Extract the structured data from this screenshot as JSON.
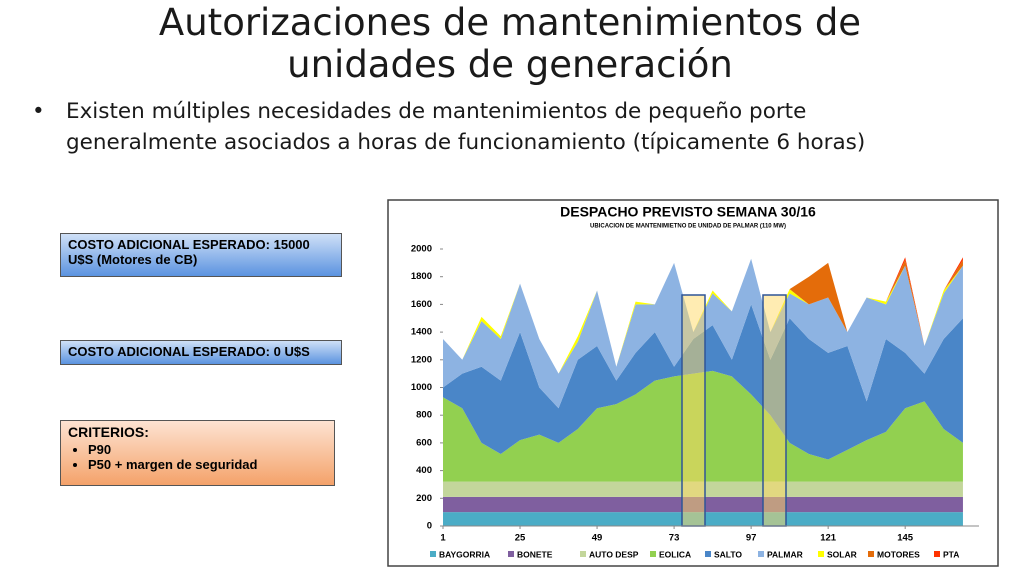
{
  "slide": {
    "title": "Autorizaciones de mantenimientos de unidades de generación",
    "bullet": "Existen múltiples necesidades de mantenimientos de pequeño porte generalmente asociados a horas de funcionamiento (típicamente 6 horas)",
    "box1": "COSTO ADICIONAL ESPERADO: 15000 U$S (Motores de CB)",
    "box2": "COSTO ADICIONAL ESPERADO: 0 U$S",
    "criteria": {
      "title": "CRITERIOS:",
      "items": [
        "P90",
        "P50 + margen de seguridad"
      ]
    }
  },
  "chart_data": {
    "type": "stacked_area",
    "title": "DESPACHO PREVISTO SEMANA 30/16",
    "subtitle": "UBICACION DE MANTENIMIETNO DE UNIDAD DE PALMAR (110 MW)",
    "x": [
      1,
      7,
      13,
      19,
      25,
      31,
      37,
      43,
      49,
      55,
      61,
      67,
      73,
      79,
      85,
      91,
      97,
      103,
      109,
      115,
      121,
      127,
      133,
      139,
      145,
      151,
      157,
      163
    ],
    "xlim": [
      1,
      168
    ],
    "xticks": [
      1,
      25,
      49,
      73,
      97,
      121,
      145
    ],
    "ylim": [
      0,
      2000
    ],
    "yticks": [
      0,
      200,
      400,
      600,
      800,
      1000,
      1200,
      1400,
      1600,
      1800,
      2000
    ],
    "grid": false,
    "legend": "bottom",
    "series": [
      {
        "name": "BAYGORRIA",
        "color": "#4bacc6",
        "values": [
          100,
          100,
          100,
          100,
          100,
          100,
          100,
          100,
          100,
          100,
          100,
          100,
          100,
          100,
          100,
          100,
          100,
          100,
          100,
          100,
          100,
          100,
          100,
          100,
          100,
          100,
          100,
          100
        ]
      },
      {
        "name": "BONETE",
        "color": "#7f5f9f",
        "values": [
          110,
          110,
          110,
          110,
          110,
          110,
          110,
          110,
          110,
          110,
          110,
          110,
          110,
          110,
          110,
          110,
          110,
          110,
          110,
          110,
          110,
          110,
          110,
          110,
          110,
          110,
          110,
          110
        ]
      },
      {
        "name": "AUTO DESP",
        "color": "#c3d69b",
        "values": [
          110,
          110,
          110,
          110,
          110,
          110,
          110,
          110,
          110,
          110,
          110,
          110,
          110,
          110,
          110,
          110,
          110,
          110,
          110,
          110,
          110,
          110,
          110,
          110,
          110,
          110,
          110,
          110
        ]
      },
      {
        "name": "EOLICA",
        "color": "#92d050",
        "values": [
          610,
          530,
          280,
          200,
          300,
          340,
          280,
          380,
          530,
          560,
          630,
          730,
          760,
          780,
          800,
          760,
          630,
          480,
          280,
          200,
          160,
          230,
          300,
          360,
          530,
          580,
          380,
          280
        ]
      },
      {
        "name": "SALTO",
        "color": "#4a86c8",
        "values": [
          70,
          250,
          550,
          530,
          780,
          340,
          250,
          500,
          450,
          170,
          300,
          350,
          70,
          250,
          330,
          120,
          650,
          400,
          900,
          830,
          770,
          750,
          280,
          670,
          400,
          200,
          650,
          900
        ]
      },
      {
        "name": "PALMAR",
        "color": "#8db3e2",
        "values": [
          350,
          100,
          330,
          300,
          350,
          350,
          250,
          130,
          400,
          100,
          350,
          200,
          750,
          50,
          230,
          350,
          330,
          200,
          180,
          250,
          400,
          100,
          750,
          250,
          630,
          200,
          330,
          380
        ]
      },
      {
        "name": "SOLAR",
        "color": "#ffff00",
        "values": [
          0,
          0,
          30,
          20,
          0,
          0,
          0,
          40,
          0,
          0,
          20,
          0,
          0,
          0,
          20,
          0,
          0,
          0,
          30,
          0,
          0,
          0,
          0,
          20,
          0,
          0,
          20,
          0
        ]
      },
      {
        "name": "MOTORES",
        "color": "#e46c0a",
        "values": [
          0,
          0,
          0,
          0,
          0,
          0,
          0,
          0,
          0,
          0,
          0,
          0,
          0,
          0,
          0,
          0,
          0,
          0,
          0,
          200,
          250,
          0,
          0,
          0,
          40,
          0,
          0,
          40
        ]
      },
      {
        "name": "PTA",
        "color": "#ff3300",
        "values": [
          0,
          0,
          0,
          0,
          0,
          0,
          0,
          0,
          0,
          0,
          0,
          0,
          0,
          0,
          0,
          0,
          0,
          0,
          0,
          0,
          0,
          0,
          0,
          0,
          20,
          0,
          0,
          20
        ]
      }
    ]
  }
}
